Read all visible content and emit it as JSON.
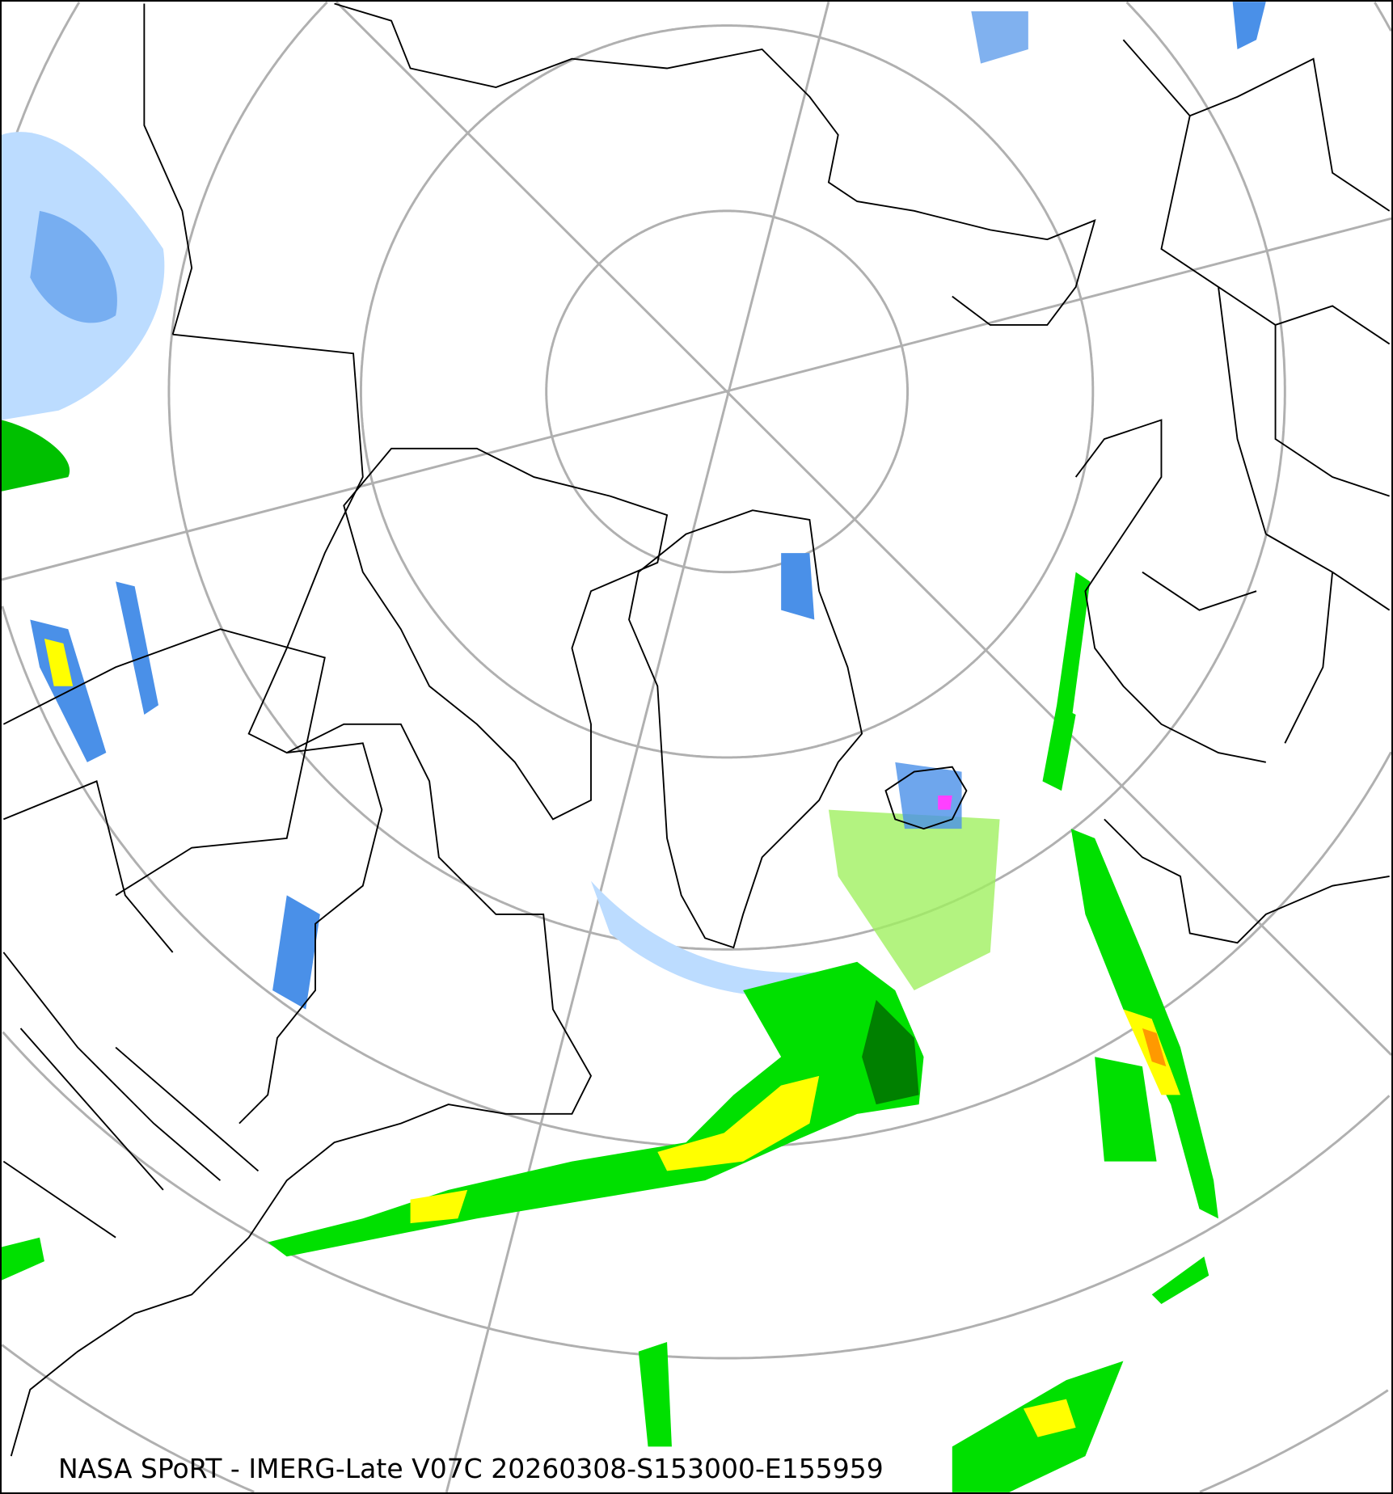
{
  "caption": "NASA SPoRT - IMERG-Late V07C 20260308-S153000-E155959",
  "colors": {
    "graticule": "#b0b0b0",
    "coastline": "#000000",
    "precip_light_blue": "#bcdcff",
    "precip_blue": "#4a90e8",
    "precip_green": "#00e000",
    "precip_dark_green": "#008000",
    "precip_light_green": "#a0f060",
    "precip_yellow": "#ffff00",
    "precip_orange": "#ff9900",
    "precip_red": "#e02000",
    "precip_magenta": "#ff40ff"
  }
}
